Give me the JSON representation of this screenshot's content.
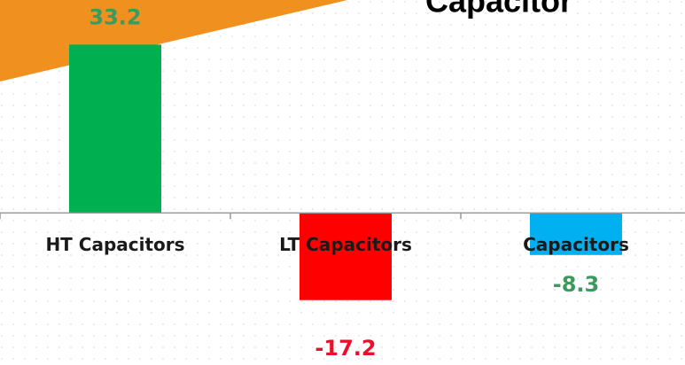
{
  "chart_data": {
    "type": "bar",
    "title": "Capacitor",
    "categories": [
      "HT Capacitors",
      "LT Capacitors",
      "Capacitors"
    ],
    "values": [
      33.2,
      -17.2,
      -8.3
    ],
    "colors": [
      "#00b050",
      "#ff0000",
      "#00b0f0"
    ],
    "label_colors": [
      "#3d9a5e",
      "#e8102a",
      "#3d9a5e"
    ],
    "ylim": [
      -30,
      42
    ]
  }
}
